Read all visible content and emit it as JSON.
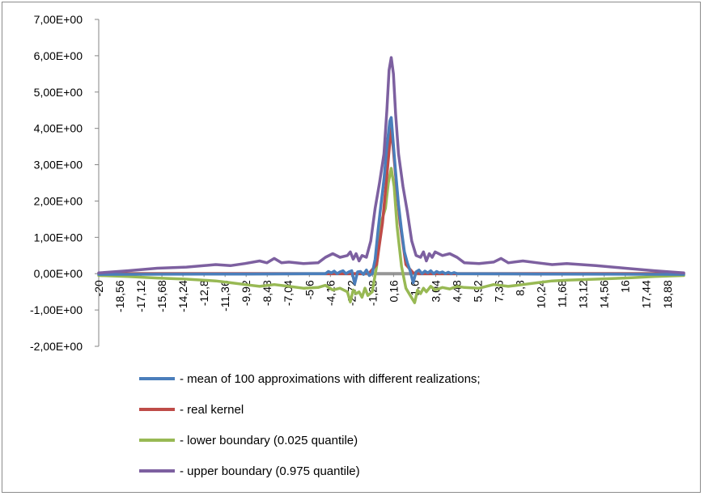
{
  "chart_data": {
    "type": "line",
    "title": "",
    "xlabel": "",
    "ylabel": "",
    "ylim": [
      -2,
      7
    ],
    "xlim": [
      -20,
      20
    ],
    "y_ticks": [
      7,
      6,
      5,
      4,
      3,
      2,
      1,
      0,
      -1,
      -2
    ],
    "y_tick_labels": [
      "7,00E+00",
      "6,00E+00",
      "5,00E+00",
      "4,00E+00",
      "3,00E+00",
      "2,00E+00",
      "1,00E+00",
      "0,00E+00",
      "-1,00E+00",
      "-2,00E+00"
    ],
    "x_ticks": [
      -20,
      -18.56,
      -17.12,
      -15.68,
      -14.24,
      -12.8,
      -11.36,
      -9.92,
      -8.48,
      -7.04,
      -5.6,
      -4.16,
      -2.72,
      -1.28,
      0.16,
      1.6,
      3.04,
      4.48,
      5.92,
      7.36,
      8.8,
      10.24,
      11.68,
      13.12,
      14.56,
      16,
      17.44,
      18.88
    ],
    "x_tick_labels": [
      "-20",
      "-18,56",
      "-17,12",
      "-15,68",
      "-14,24",
      "-12,8",
      "-11,36",
      "-9,92",
      "-8,48",
      "-7,04",
      "-5,6",
      "-4,16",
      "-2,72",
      "-1,28",
      "0,16",
      "1,6",
      "3,04",
      "4,48",
      "5,92",
      "7,36",
      "8,8",
      "10,24",
      "11,68",
      "13,12",
      "14,56",
      "16",
      "17,44",
      "18,88"
    ],
    "grid": false,
    "legend_position": "bottom",
    "series": [
      {
        "name": "- mean of 100 approximations with different realizations;",
        "color": "#4a7ebb",
        "x": [
          -20,
          -10,
          -4.5,
          -4.3,
          -4.1,
          -3.9,
          -3.7,
          -3.5,
          -3.3,
          -3.1,
          -2.9,
          -2.7,
          -2.5,
          -2.3,
          -2.1,
          -1.9,
          -1.7,
          -1.5,
          -1.3,
          -1.1,
          -0.9,
          -0.7,
          -0.5,
          -0.3,
          -0.1,
          0,
          0.1,
          0.3,
          0.5,
          0.7,
          0.9,
          1.1,
          1.3,
          1.5,
          1.7,
          1.9,
          2.1,
          2.3,
          2.5,
          2.7,
          2.9,
          3.1,
          3.3,
          3.5,
          3.7,
          3.9,
          4.1,
          4.3,
          4.5,
          10,
          20
        ],
        "y": [
          -0.02,
          -0.01,
          0.0,
          0.06,
          0.02,
          0.07,
          0.0,
          0.05,
          0.08,
          0.0,
          0.05,
          0.08,
          -0.28,
          0.05,
          0.06,
          -0.02,
          0.1,
          -0.05,
          0.0,
          0.4,
          1.2,
          1.9,
          2.6,
          3.5,
          4.2,
          4.3,
          3.8,
          2.8,
          1.9,
          1.2,
          0.6,
          0.3,
          0.07,
          -0.25,
          0.05,
          0.1,
          0.0,
          0.07,
          0.02,
          0.08,
          0.0,
          0.06,
          0.02,
          0.05,
          0.0,
          0.04,
          0.0,
          0.03,
          0.0,
          -0.01,
          -0.02
        ]
      },
      {
        "name": "- real kernel",
        "color": "#be4b48",
        "x": [
          -20,
          -10,
          -3,
          -2,
          -1.5,
          -1,
          -0.6,
          -0.3,
          -0.1,
          0,
          0.1,
          0.3,
          0.6,
          1,
          1.5,
          2,
          3,
          10,
          20
        ],
        "y": [
          0.0,
          0.0,
          0.0,
          0.0,
          0.02,
          0.25,
          1.4,
          2.7,
          3.6,
          4.0,
          3.6,
          2.7,
          1.4,
          0.25,
          0.02,
          0.0,
          0.0,
          0.0,
          0.0
        ]
      },
      {
        "name": "- lower boundary (0.025 quantile)",
        "color": "#98b954",
        "x": [
          -20,
          -18,
          -16,
          -14,
          -12,
          -11,
          -10,
          -9,
          -8,
          -7,
          -6,
          -5,
          -4.5,
          -4,
          -3.5,
          -3,
          -2.8,
          -2.6,
          -2.4,
          -2.2,
          -2,
          -1.8,
          -1.6,
          -1.3,
          -1.0,
          -0.7,
          -0.4,
          -0.2,
          0,
          0.2,
          0.4,
          0.7,
          1.0,
          1.3,
          1.6,
          1.8,
          2.0,
          2.2,
          2.4,
          2.7,
          3.0,
          3.5,
          4,
          4.5,
          5,
          6,
          7,
          8,
          9,
          10,
          11,
          12,
          14,
          16,
          18,
          20
        ],
        "y": [
          -0.05,
          -0.08,
          -0.12,
          -0.15,
          -0.2,
          -0.25,
          -0.3,
          -0.35,
          -0.3,
          -0.35,
          -0.4,
          -0.38,
          -0.32,
          -0.45,
          -0.4,
          -0.5,
          -0.78,
          -0.45,
          -0.55,
          -0.5,
          -0.65,
          -0.4,
          -0.6,
          -0.5,
          0.2,
          1.4,
          1.8,
          2.5,
          2.9,
          2.4,
          1.3,
          0.2,
          -0.4,
          -0.6,
          -0.8,
          -0.45,
          -0.55,
          -0.4,
          -0.5,
          -0.35,
          -0.45,
          -0.38,
          -0.42,
          -0.35,
          -0.38,
          -0.4,
          -0.3,
          -0.35,
          -0.3,
          -0.25,
          -0.2,
          -0.18,
          -0.15,
          -0.12,
          -0.08,
          -0.05
        ]
      },
      {
        "name": "- upper boundary (0.975 quantile)",
        "color": "#7d60a0",
        "x": [
          -20,
          -18,
          -16,
          -14,
          -12,
          -11,
          -10,
          -9,
          -8.5,
          -8,
          -7.5,
          -7,
          -6,
          -5,
          -4.5,
          -4,
          -3.5,
          -3,
          -2.8,
          -2.6,
          -2.4,
          -2.2,
          -2,
          -1.7,
          -1.4,
          -1.1,
          -0.8,
          -0.5,
          -0.3,
          -0.15,
          0,
          0.15,
          0.3,
          0.5,
          0.8,
          1.1,
          1.4,
          1.7,
          2,
          2.2,
          2.4,
          2.6,
          2.8,
          3,
          3.5,
          4,
          4.5,
          5,
          6,
          7,
          7.5,
          8,
          9,
          10,
          11,
          12,
          14,
          16,
          18,
          20
        ],
        "y": [
          0.02,
          0.08,
          0.15,
          0.18,
          0.25,
          0.22,
          0.28,
          0.35,
          0.3,
          0.42,
          0.3,
          0.32,
          0.28,
          0.3,
          0.45,
          0.55,
          0.45,
          0.5,
          0.6,
          0.4,
          0.55,
          0.35,
          0.5,
          0.45,
          0.9,
          1.8,
          2.5,
          3.3,
          4.5,
          5.6,
          5.95,
          5.5,
          4.4,
          3.3,
          2.4,
          1.7,
          0.9,
          0.5,
          0.45,
          0.6,
          0.35,
          0.55,
          0.45,
          0.6,
          0.5,
          0.55,
          0.45,
          0.3,
          0.28,
          0.32,
          0.42,
          0.3,
          0.35,
          0.3,
          0.25,
          0.28,
          0.22,
          0.15,
          0.08,
          0.02
        ]
      }
    ],
    "zero_line_color": "#969696"
  }
}
